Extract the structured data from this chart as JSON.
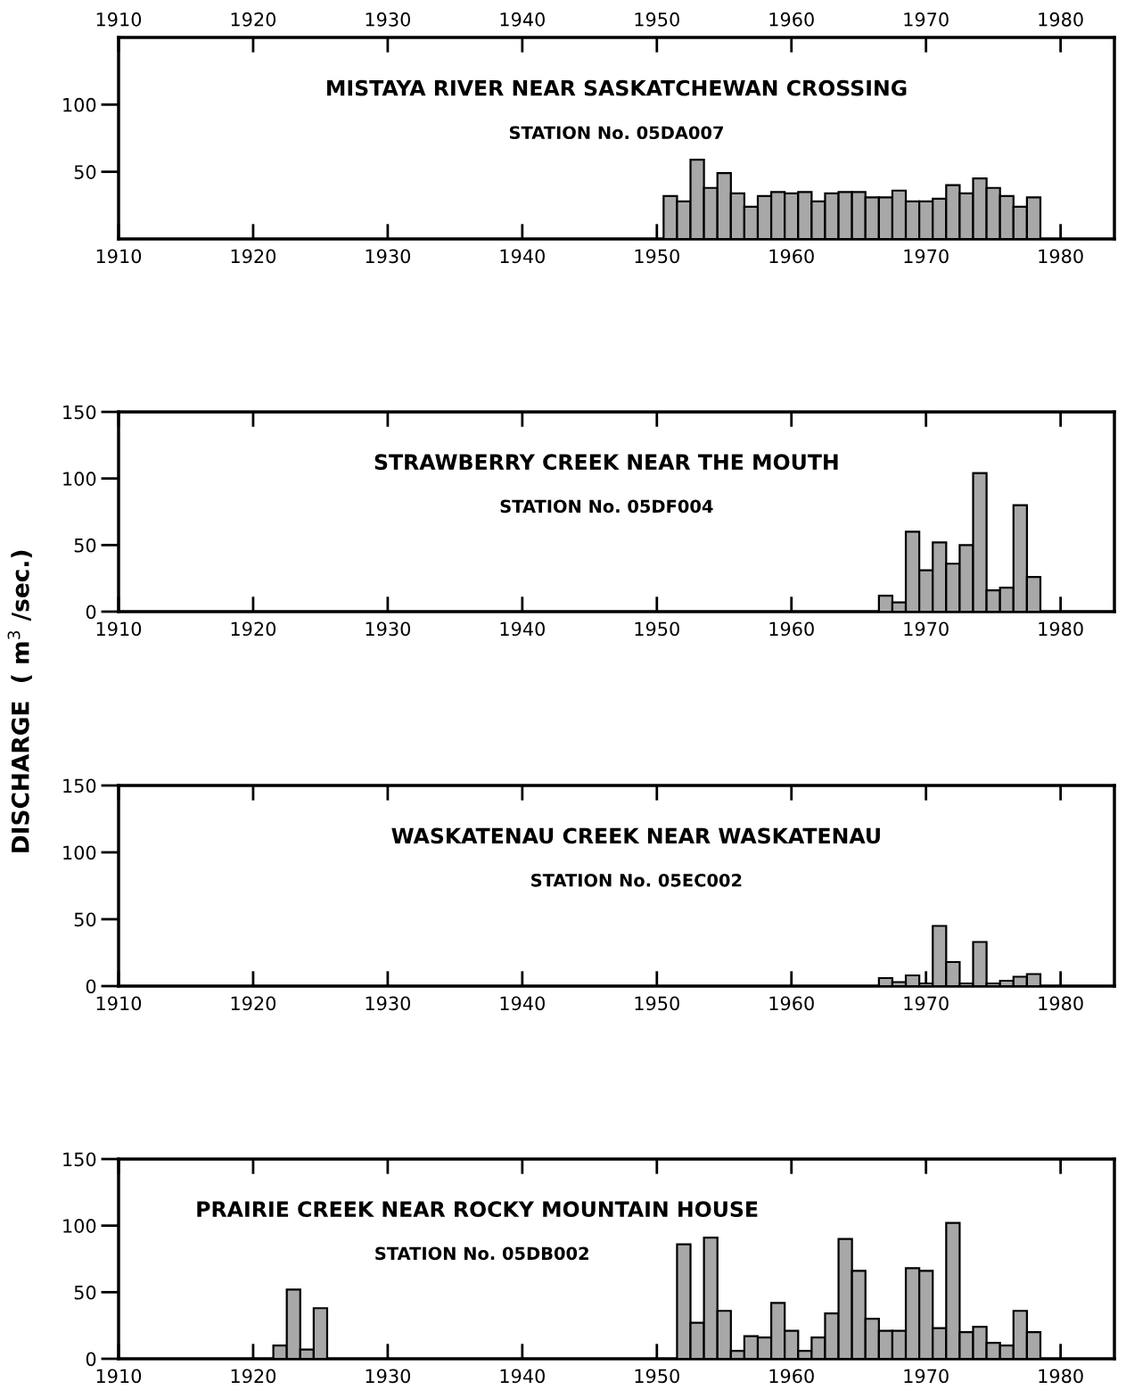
{
  "chart_data": [
    {
      "type": "histogram",
      "title": "MISTAYA RIVER NEAR SASKATCHEWAN CROSSING",
      "subtitle": "STATION No. 05DA007",
      "color": "#a8a8a8",
      "bins": [
        1950.5,
        1951.5,
        1952.5,
        1953.5,
        1954.5,
        1955.5,
        1956.5,
        1957.5,
        1958.5,
        1959.5,
        1960.5,
        1961.5,
        1962.5,
        1963.5,
        1964.5,
        1965.5,
        1966.5,
        1967.5,
        1968.5,
        1969.5,
        1970.5,
        1971.5,
        1972.5,
        1973.5,
        1974.5,
        1975.5,
        1976.5,
        1977.5,
        1978.5
      ],
      "values": [
        32,
        28,
        59,
        38,
        49,
        34,
        24,
        32,
        35,
        34,
        35,
        28,
        34,
        35,
        35,
        31,
        31,
        36,
        28,
        28,
        30,
        40,
        34,
        45,
        38,
        32,
        24,
        31
      ],
      "xlim": [
        1910,
        1984
      ],
      "xticks": [
        1910,
        1920,
        1930,
        1940,
        1950,
        1960,
        1970,
        1980
      ],
      "x2lim": [
        1910,
        1984
      ],
      "x2ticks": [
        1910,
        1920,
        1930,
        1940,
        1950,
        1960,
        1970,
        1980
      ],
      "ylim": [
        0,
        150
      ],
      "yticks": [
        50,
        100
      ],
      "grid": false
    },
    {
      "type": "histogram",
      "title": "STRAWBERRY CREEK NEAR THE MOUTH",
      "subtitle": "STATION No. 05DF004",
      "color": "#a8a8a8",
      "ylabel": "DISCHARGE  ( m$^{3}$ /sec.)",
      "bins": [
        1966.5,
        1967.5,
        1968.5,
        1969.5,
        1970.5,
        1971.5,
        1972.5,
        1973.5,
        1974.5,
        1975.5,
        1976.5,
        1977.5,
        1978.5
      ],
      "values": [
        12,
        7,
        60,
        31,
        52,
        36,
        50,
        104,
        16,
        18,
        80,
        26
      ],
      "xlim": [
        1910,
        1984
      ],
      "xticks": [
        1910,
        1920,
        1930,
        1940,
        1950,
        1960,
        1970,
        1980
      ],
      "ylim": [
        0,
        150
      ],
      "yticks": [
        0,
        50,
        100,
        150
      ],
      "grid": false
    },
    {
      "type": "histogram",
      "title": "WASKATENAU CREEK NEAR WASKATENAU",
      "subtitle": "STATION No. 05EC002",
      "color": "#a8a8a8",
      "bins": [
        1966.5,
        1967.5,
        1968.5,
        1969.5,
        1970.5,
        1971.5,
        1972.5,
        1973.5,
        1974.5,
        1975.5,
        1976.5,
        1977.5,
        1978.5
      ],
      "values": [
        6,
        3,
        8,
        2,
        45,
        18,
        2,
        33,
        2,
        4,
        7,
        9
      ],
      "xlim": [
        1910,
        1984
      ],
      "xticks": [
        1910,
        1920,
        1930,
        1940,
        1950,
        1960,
        1970,
        1980
      ],
      "ylim": [
        0,
        150
      ],
      "yticks": [
        0,
        50,
        100,
        150
      ],
      "grid": false
    },
    {
      "type": "histogram",
      "title": "PRAIRIE CREEK NEAR ROCKY MOUNTAIN HOUSE",
      "subtitle": "STATION No. 05DB002",
      "color": "#a8a8a8",
      "bins": [
        1921.5,
        1922.5,
        1923.5,
        1924.5,
        1925.5,
        1926.5,
        1927.5,
        1928.5,
        1929.5,
        1930.5,
        1931.5,
        1932.5,
        1933.5,
        1934.5,
        1935.5,
        1936.5,
        1937.5,
        1938.5,
        1939.5,
        1940.5,
        1941.5,
        1942.5,
        1943.5,
        1944.5,
        1945.5,
        1946.5,
        1947.5,
        1948.5,
        1949.5,
        1950.5,
        1951.5,
        1952.5,
        1953.5,
        1954.5,
        1955.5,
        1956.5,
        1957.5,
        1958.5,
        1959.5,
        1960.5,
        1961.5,
        1962.5,
        1963.5,
        1964.5,
        1965.5,
        1966.5,
        1967.5,
        1968.5,
        1969.5,
        1970.5,
        1971.5,
        1972.5,
        1973.5,
        1974.5,
        1975.5,
        1976.5,
        1977.5,
        1978.5
      ],
      "values": [
        10,
        52,
        7,
        38,
        null,
        null,
        null,
        null,
        null,
        null,
        null,
        null,
        null,
        null,
        null,
        null,
        null,
        null,
        null,
        null,
        null,
        null,
        null,
        null,
        null,
        null,
        null,
        null,
        null,
        null,
        86,
        27,
        91,
        36,
        6,
        17,
        16,
        42,
        21,
        6,
        16,
        34,
        90,
        66,
        30,
        21,
        21,
        68,
        66,
        23,
        102,
        20,
        24,
        12,
        10,
        36,
        20
      ],
      "xlim": [
        1910,
        1984
      ],
      "xticks": [
        1910,
        1920,
        1930,
        1940,
        1950,
        1960,
        1970,
        1980
      ],
      "ylim": [
        0,
        150
      ],
      "yticks": [
        0,
        50,
        100,
        150
      ],
      "grid": false
    }
  ]
}
